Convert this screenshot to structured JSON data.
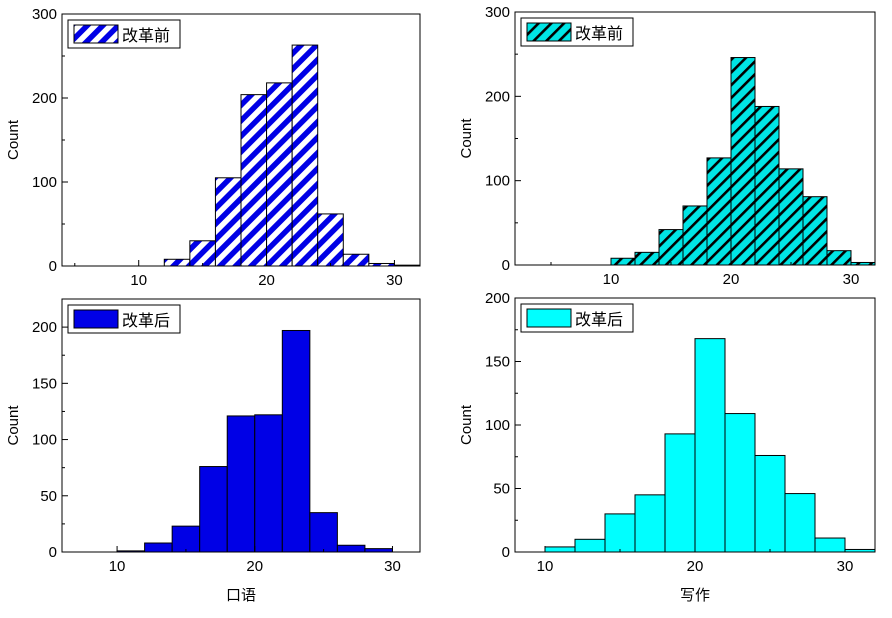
{
  "chart_data": [
    {
      "type": "bar",
      "title": "",
      "legend": "改革前",
      "legend_position": "top-left",
      "xlabel": "",
      "ylabel": "Count",
      "xlim": [
        4,
        32
      ],
      "ylim": [
        0,
        300
      ],
      "xticks": [
        10,
        20,
        30
      ],
      "yticks": [
        0,
        100,
        200,
        300
      ],
      "fill": "hatched",
      "color": "#0000e6",
      "bins": [
        [
          12,
          14
        ],
        [
          14,
          16
        ],
        [
          16,
          18
        ],
        [
          18,
          20
        ],
        [
          20,
          22
        ],
        [
          22,
          24
        ],
        [
          24,
          26
        ],
        [
          26,
          28
        ],
        [
          28,
          30
        ],
        [
          30,
          32
        ]
      ],
      "values": [
        8,
        30,
        105,
        204,
        218,
        263,
        62,
        14,
        3,
        1
      ]
    },
    {
      "type": "bar",
      "title": "",
      "legend": "改革前",
      "legend_position": "top-left",
      "xlabel": "",
      "ylabel": "Count",
      "xlim": [
        2,
        32
      ],
      "ylim": [
        0,
        300
      ],
      "xticks": [
        10,
        20,
        30
      ],
      "yticks": [
        0,
        100,
        200,
        300
      ],
      "fill": "hatched",
      "color": "#00e5e5",
      "bins": [
        [
          10,
          12
        ],
        [
          12,
          14
        ],
        [
          14,
          16
        ],
        [
          16,
          18
        ],
        [
          18,
          20
        ],
        [
          20,
          22
        ],
        [
          22,
          24
        ],
        [
          24,
          26
        ],
        [
          26,
          28
        ],
        [
          28,
          30
        ],
        [
          30,
          32
        ]
      ],
      "values": [
        8,
        15,
        42,
        70,
        127,
        246,
        188,
        114,
        81,
        17,
        3
      ]
    },
    {
      "type": "bar",
      "title": "",
      "legend": "改革后",
      "legend_position": "top-left",
      "xlabel": "口语",
      "ylabel": "Count",
      "xlim": [
        6,
        32
      ],
      "ylim": [
        0,
        225
      ],
      "xticks": [
        10,
        20,
        30
      ],
      "yticks": [
        0,
        50,
        100,
        150,
        200
      ],
      "fill": "solid",
      "color": "#0000e6",
      "bins": [
        [
          10,
          12
        ],
        [
          12,
          14
        ],
        [
          14,
          16
        ],
        [
          16,
          18
        ],
        [
          18,
          20
        ],
        [
          20,
          22
        ],
        [
          22,
          24
        ],
        [
          24,
          26
        ],
        [
          26,
          28
        ],
        [
          28,
          30
        ]
      ],
      "values": [
        1,
        8,
        23,
        76,
        121,
        122,
        197,
        35,
        6,
        3
      ]
    },
    {
      "type": "bar",
      "title": "",
      "legend": "改革后",
      "legend_position": "top-left",
      "xlabel": "写作",
      "ylabel": "Count",
      "xlim": [
        8,
        32
      ],
      "ylim": [
        0,
        200
      ],
      "xticks": [
        10,
        20,
        30
      ],
      "yticks": [
        0,
        50,
        100,
        150,
        200
      ],
      "fill": "solid",
      "color": "#00ffff",
      "bins": [
        [
          10,
          12
        ],
        [
          12,
          14
        ],
        [
          14,
          16
        ],
        [
          16,
          18
        ],
        [
          18,
          20
        ],
        [
          20,
          22
        ],
        [
          22,
          24
        ],
        [
          24,
          26
        ],
        [
          26,
          28
        ],
        [
          28,
          30
        ],
        [
          30,
          32
        ]
      ],
      "values": [
        4,
        10,
        30,
        45,
        93,
        168,
        109,
        76,
        46,
        11,
        2
      ]
    }
  ]
}
